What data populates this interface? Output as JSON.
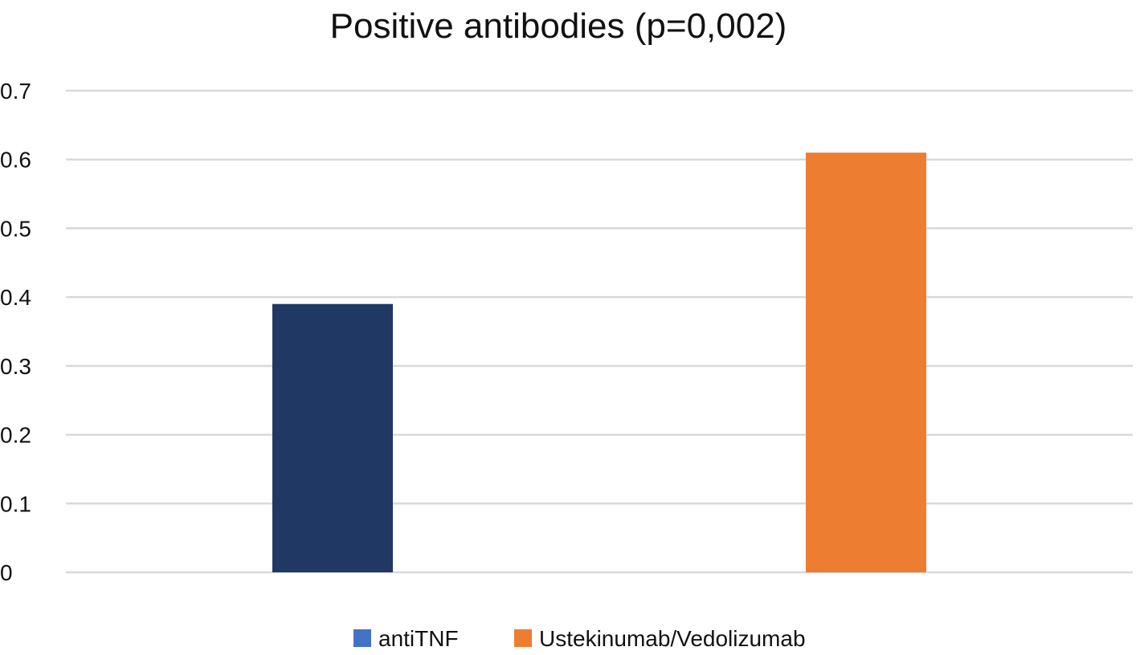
{
  "chart_data": {
    "type": "bar",
    "title": "Positive antibodies  (p=0,002)",
    "xlabel": "",
    "ylabel": "",
    "ylim": [
      0,
      0.7
    ],
    "yticks": [
      0,
      0.1,
      0.2,
      0.3,
      0.4,
      0.5,
      0.6,
      0.7
    ],
    "ytick_labels": [
      "0",
      "0.1",
      "0.2",
      "0.3",
      "0.4",
      "0.5",
      "0.6",
      "0.7"
    ],
    "grid": true,
    "legend_position": "bottom",
    "series": [
      {
        "name": "antiTNF",
        "value": 0.39,
        "color": "#203864",
        "legend_color": "#4472C4"
      },
      {
        "name": "Ustekinumab/Vedolizumab",
        "value": 0.61,
        "color": "#ED7D31",
        "legend_color": "#ED7D31"
      }
    ]
  }
}
